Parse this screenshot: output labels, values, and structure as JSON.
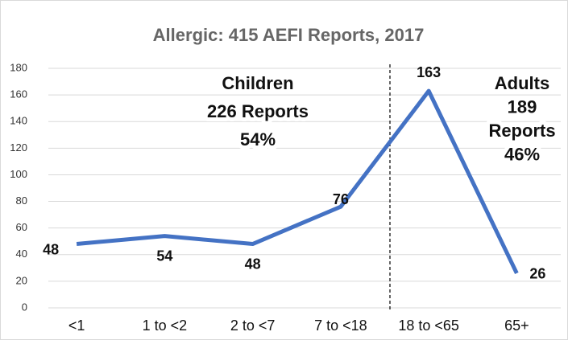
{
  "chart_data": {
    "type": "line",
    "title": "Allergic: 415 AEFI Reports, 2017",
    "categories": [
      "<1",
      "1 to <2",
      "2 to <7",
      "7 to <18",
      "18 to <65",
      "65+"
    ],
    "values": [
      48,
      54,
      48,
      76,
      163,
      26
    ],
    "color": "#4472c4",
    "ylim": [
      0,
      180
    ],
    "yticks": [
      0,
      20,
      40,
      60,
      80,
      100,
      120,
      140,
      160,
      180
    ],
    "grid": true,
    "annotations": [
      [
        "Children",
        "226 Reports",
        "54%"
      ],
      [
        "Adults",
        "189",
        "Reports",
        "46%"
      ]
    ]
  }
}
